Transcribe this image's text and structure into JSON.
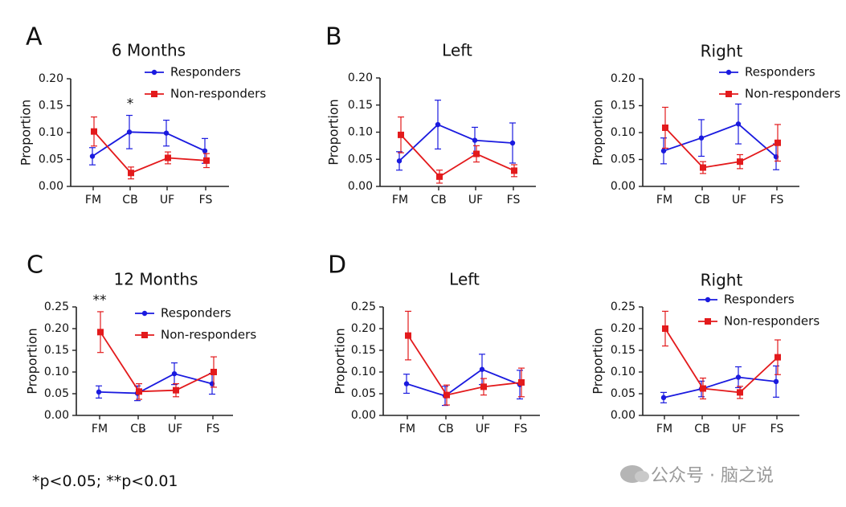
{
  "footnote": "*p<0.05; **p<0.01",
  "watermark": {
    "text": "公众号 · 脑之说",
    "icon": "wechat-icon"
  },
  "colors": {
    "responders": "#1a1adf",
    "nonresponders": "#e31a1c"
  },
  "chart_data": [
    {
      "id": "A-6m",
      "letter": "A",
      "type": "line",
      "title": "6 Months",
      "ylabel": "Proportion",
      "xlabel": "",
      "categories": [
        "FM",
        "CB",
        "UF",
        "FS"
      ],
      "ylim": [
        0,
        0.2
      ],
      "yticks": [
        "0.00",
        "0.05",
        "0.10",
        "0.15",
        "0.20"
      ],
      "legend": {
        "show": true,
        "position": "top-right"
      },
      "annotations": [
        {
          "text": "*",
          "category": "CB"
        }
      ],
      "series": [
        {
          "name": "Responders",
          "color": "#1a1adf",
          "marker": "circle",
          "values": [
            0.056,
            0.101,
            0.099,
            0.066
          ],
          "errors": [
            0.016,
            0.031,
            0.024,
            0.023
          ]
        },
        {
          "name": "Non-responders",
          "color": "#e31a1c",
          "marker": "square",
          "values": [
            0.102,
            0.025,
            0.053,
            0.048
          ],
          "errors": [
            0.027,
            0.011,
            0.011,
            0.013
          ]
        }
      ]
    },
    {
      "id": "B-left",
      "letter": "B",
      "type": "line",
      "title": "Left",
      "ylabel": "Proportion",
      "xlabel": "",
      "categories": [
        "FM",
        "CB",
        "UF",
        "FS"
      ],
      "ylim": [
        0,
        0.2
      ],
      "yticks": [
        "0.00",
        "0.05",
        "0.10",
        "0.15",
        "0.20"
      ],
      "legend": {
        "show": false
      },
      "annotations": [],
      "series": [
        {
          "name": "Responders",
          "color": "#1a1adf",
          "marker": "circle",
          "values": [
            0.047,
            0.114,
            0.085,
            0.08
          ],
          "errors": [
            0.017,
            0.045,
            0.024,
            0.037
          ]
        },
        {
          "name": "Non-responders",
          "color": "#e31a1c",
          "marker": "square",
          "values": [
            0.095,
            0.018,
            0.06,
            0.029
          ],
          "errors": [
            0.033,
            0.012,
            0.015,
            0.011
          ]
        }
      ]
    },
    {
      "id": "B-right",
      "letter": "",
      "type": "line",
      "title": "Right",
      "ylabel": "Proportion",
      "xlabel": "",
      "categories": [
        "FM",
        "CB",
        "UF",
        "FS"
      ],
      "ylim": [
        0,
        0.2
      ],
      "yticks": [
        "0.00",
        "0.05",
        "0.10",
        "0.15",
        "0.20"
      ],
      "legend": {
        "show": true,
        "position": "top-right"
      },
      "annotations": [],
      "series": [
        {
          "name": "Responders",
          "color": "#1a1adf",
          "marker": "circle",
          "values": [
            0.066,
            0.09,
            0.116,
            0.055
          ],
          "errors": [
            0.024,
            0.034,
            0.037,
            0.024
          ]
        },
        {
          "name": "Non-responders",
          "color": "#e31a1c",
          "marker": "square",
          "values": [
            0.109,
            0.035,
            0.046,
            0.081
          ],
          "errors": [
            0.038,
            0.011,
            0.013,
            0.034
          ]
        }
      ]
    },
    {
      "id": "C-12m",
      "letter": "C",
      "type": "line",
      "title": "12 Months",
      "ylabel": "Proportion",
      "xlabel": "",
      "categories": [
        "FM",
        "CB",
        "UF",
        "FS"
      ],
      "ylim": [
        0,
        0.25
      ],
      "yticks": [
        "0.00",
        "0.05",
        "0.10",
        "0.15",
        "0.20",
        "0.25"
      ],
      "legend": {
        "show": true,
        "position": "top-right"
      },
      "annotations": [
        {
          "text": "**",
          "category": "FM"
        }
      ],
      "series": [
        {
          "name": "Responders",
          "color": "#1a1adf",
          "marker": "circle",
          "values": [
            0.054,
            0.051,
            0.096,
            0.073
          ],
          "errors": [
            0.014,
            0.017,
            0.025,
            0.024
          ]
        },
        {
          "name": "Non-responders",
          "color": "#e31a1c",
          "marker": "square",
          "values": [
            0.192,
            0.055,
            0.058,
            0.1
          ],
          "errors": [
            0.047,
            0.018,
            0.015,
            0.035
          ]
        }
      ]
    },
    {
      "id": "D-left",
      "letter": "D",
      "type": "line",
      "title": "Left",
      "ylabel": "Proportion",
      "xlabel": "",
      "categories": [
        "FM",
        "CB",
        "UF",
        "FS"
      ],
      "ylim": [
        0,
        0.25
      ],
      "yticks": [
        "0.00",
        "0.05",
        "0.10",
        "0.15",
        "0.20",
        "0.25"
      ],
      "legend": {
        "show": false
      },
      "annotations": [],
      "series": [
        {
          "name": "Responders",
          "color": "#1a1adf",
          "marker": "circle",
          "values": [
            0.073,
            0.045,
            0.106,
            0.071
          ],
          "errors": [
            0.022,
            0.022,
            0.035,
            0.033
          ]
        },
        {
          "name": "Non-responders",
          "color": "#e31a1c",
          "marker": "square",
          "values": [
            0.184,
            0.047,
            0.066,
            0.076
          ],
          "errors": [
            0.056,
            0.023,
            0.019,
            0.033
          ]
        }
      ]
    },
    {
      "id": "D-right",
      "letter": "",
      "type": "line",
      "title": "Right",
      "ylabel": "Proportion",
      "xlabel": "",
      "categories": [
        "FM",
        "CB",
        "UF",
        "FS"
      ],
      "ylim": [
        0,
        0.25
      ],
      "yticks": [
        "0.00",
        "0.05",
        "0.10",
        "0.15",
        "0.20",
        "0.25"
      ],
      "legend": {
        "show": true,
        "position": "top-right"
      },
      "annotations": [],
      "series": [
        {
          "name": "Responders",
          "color": "#1a1adf",
          "marker": "circle",
          "values": [
            0.041,
            0.061,
            0.088,
            0.078
          ],
          "errors": [
            0.012,
            0.018,
            0.024,
            0.036
          ]
        },
        {
          "name": "Non-responders",
          "color": "#e31a1c",
          "marker": "square",
          "values": [
            0.2,
            0.062,
            0.053,
            0.134
          ],
          "errors": [
            0.04,
            0.024,
            0.014,
            0.04
          ]
        }
      ]
    }
  ]
}
